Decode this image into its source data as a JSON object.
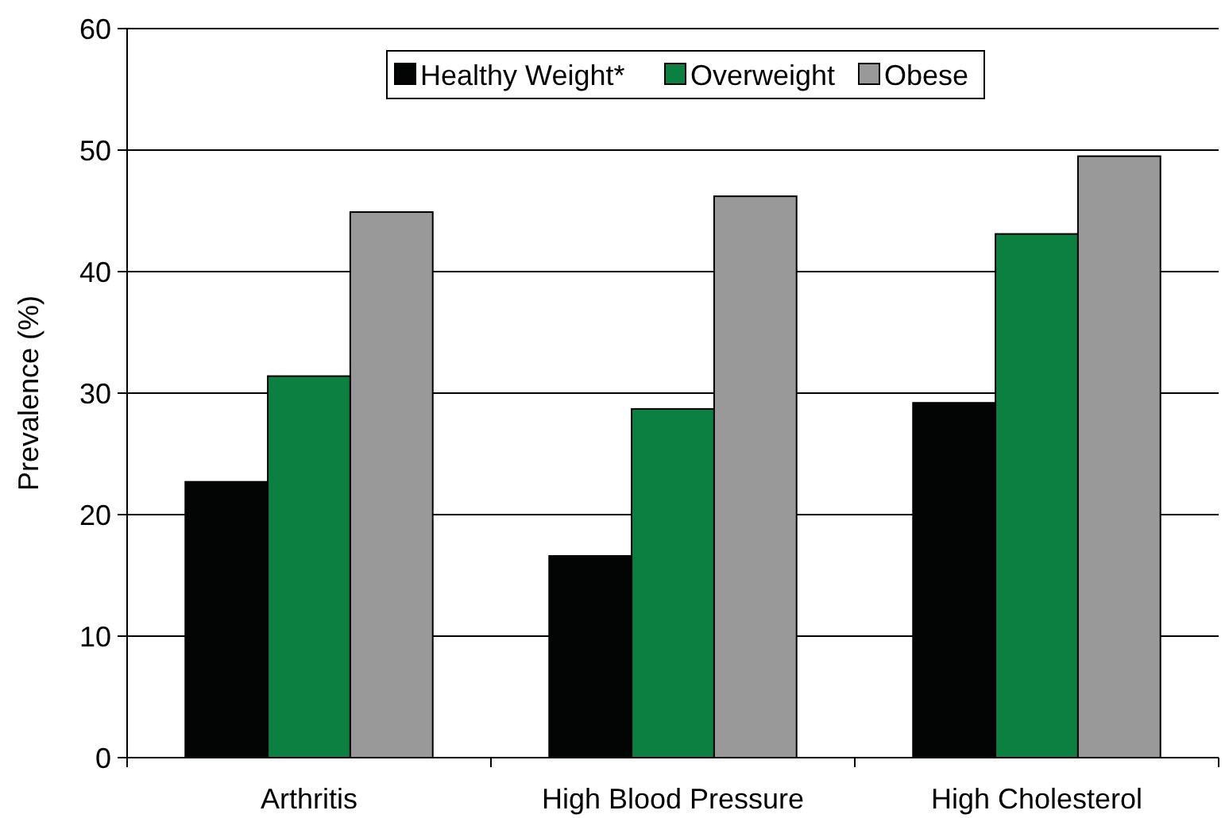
{
  "chart_data": {
    "type": "bar",
    "ylabel": "Prevalence (%)",
    "categories": [
      "Arthritis",
      "High Blood Pressure",
      "High Cholesterol"
    ],
    "series": [
      {
        "name": "Healthy Weight*",
        "color": "#030505",
        "values": [
          22.7,
          16.6,
          29.2
        ]
      },
      {
        "name": "Overweight",
        "color": "#0b8040",
        "values": [
          31.4,
          28.7,
          43.1
        ]
      },
      {
        "name": "Obese",
        "color": "#999999",
        "values": [
          44.9,
          46.2,
          49.5
        ]
      }
    ],
    "ylim": [
      0,
      60
    ],
    "yticks": [
      0,
      10,
      20,
      30,
      40,
      50,
      60
    ],
    "grid": "y",
    "legend": "top"
  }
}
